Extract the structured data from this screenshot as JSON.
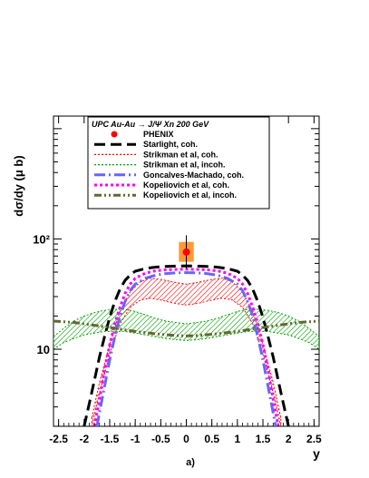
{
  "chart_data": {
    "type": "line",
    "panel_label": "a)",
    "xlabel": "y",
    "ylabel": "dσ/dy (μ b)",
    "xlim": [
      -2.6,
      2.6
    ],
    "ylim": [
      2.0,
      1300
    ],
    "yscale": "log",
    "x_ticks": [
      -2.5,
      -2,
      -1.5,
      -1,
      -0.5,
      0,
      0.5,
      1,
      1.5,
      2,
      2.5
    ],
    "x_tick_labels": [
      "-2.5",
      "-2",
      "-1.5",
      "-1",
      "-0.5",
      "0",
      "0.5",
      "1",
      "1.5",
      "2",
      "2.5"
    ],
    "y_tick_labels": [
      {
        "value": 10,
        "label": "10"
      },
      {
        "value": 100,
        "label": "10²"
      }
    ],
    "legend": {
      "header": "UPC Au-Au → J/Ψ Xn   200 GeV",
      "position": "top",
      "entries": [
        {
          "label": "PHENIX",
          "style": "marker",
          "color": "#ff0000"
        },
        {
          "label": "Starlight, coh.",
          "style": "dashed-long",
          "color": "#000000"
        },
        {
          "label": "Strikman et al, coh.",
          "style": "dotted",
          "color": "#ff0000"
        },
        {
          "label": "Strikman et al, incoh.",
          "style": "dotted",
          "color": "#00a000"
        },
        {
          "label": "Goncalves-Machado, coh.",
          "style": "dash-dot",
          "color": "#6666ff"
        },
        {
          "label": "Kopeliovich et al, coh.",
          "style": "dotted-thick",
          "color": "#ff00ff"
        },
        {
          "label": "Kopeliovich et al, incoh.",
          "style": "dash-dot-thick",
          "color": "#666633"
        }
      ]
    },
    "data_point": {
      "name": "PHENIX",
      "x": 0.0,
      "y": 76,
      "yerr_low": 54,
      "yerr_high": 108,
      "xerr": 0.35,
      "sys_low": 62,
      "sys_high": 94,
      "color": "#ff0000",
      "sys_color": "#ff9933"
    },
    "series": [
      {
        "name": "Starlight, coh.",
        "color": "#000000",
        "style": "dashed-long",
        "x": [
          -2.0,
          -1.9,
          -1.8,
          -1.7,
          -1.6,
          -1.5,
          -1.4,
          -1.3,
          -1.2,
          -1.1,
          -1.0,
          -0.8,
          -0.6,
          -0.4,
          -0.2,
          0.0,
          0.2,
          0.4,
          0.6,
          0.8,
          1.0,
          1.1,
          1.2,
          1.3,
          1.4,
          1.5,
          1.6,
          1.7,
          1.8,
          1.9,
          2.0
        ],
        "y": [
          2.0,
          3.2,
          5.2,
          8.5,
          13,
          19.5,
          27,
          35,
          42,
          47,
          51,
          54,
          55.5,
          56.3,
          56.8,
          57,
          56.8,
          56.3,
          55.5,
          54,
          51,
          47,
          42,
          35,
          27,
          19.5,
          13,
          8.5,
          5.2,
          3.2,
          2.0
        ]
      },
      {
        "name": "Strikman et al, coh.",
        "color": "#ff0000",
        "style": "band-hatched",
        "x": [
          -1.85,
          -1.7,
          -1.5,
          -1.3,
          -1.1,
          -0.9,
          -0.7,
          -0.5,
          -0.3,
          -0.1,
          0.0,
          0.1,
          0.3,
          0.5,
          0.7,
          0.9,
          1.1,
          1.3,
          1.5,
          1.7,
          1.85
        ],
        "y_low": [
          2.0,
          4.0,
          9.0,
          17,
          24,
          28,
          29,
          28,
          26.5,
          25.5,
          25.2,
          25.5,
          26.5,
          28,
          29,
          28,
          24,
          17,
          9.0,
          4.0,
          2.0
        ],
        "y_high": [
          2.4,
          5.0,
          11,
          22,
          33,
          41,
          44,
          43,
          41,
          39.5,
          39,
          39.5,
          41,
          43,
          44,
          41,
          33,
          22,
          11,
          5.0,
          2.4
        ]
      },
      {
        "name": "Strikman et al, incoh.",
        "color": "#00a000",
        "style": "band-hatched",
        "x": [
          -2.6,
          -2.4,
          -2.2,
          -2.0,
          -1.8,
          -1.6,
          -1.4,
          -1.2,
          -1.0,
          -0.8,
          -0.6,
          -0.4,
          -0.2,
          0.0,
          0.2,
          0.4,
          0.6,
          0.8,
          1.0,
          1.2,
          1.4,
          1.6,
          1.8,
          2.0,
          2.2,
          2.4,
          2.6
        ],
        "y_low": [
          10,
          11.5,
          12.5,
          13.5,
          14,
          14.5,
          14.5,
          14.5,
          14,
          13.5,
          13,
          12.5,
          12.2,
          12,
          12.2,
          12.5,
          13,
          13.5,
          14,
          14.5,
          14.5,
          14.5,
          14,
          13.5,
          12.5,
          11.5,
          10
        ],
        "y_high": [
          13,
          15.5,
          18,
          20,
          21.5,
          22.5,
          23,
          23,
          22,
          20.5,
          19,
          18,
          17.5,
          17,
          17.5,
          18,
          19,
          20.5,
          22,
          23,
          23,
          22.5,
          21.5,
          20,
          18,
          15.5,
          13
        ]
      },
      {
        "name": "Goncalves-Machado, coh.",
        "color": "#6666ff",
        "style": "dash-dot",
        "x": [
          -1.75,
          -1.65,
          -1.5,
          -1.4,
          -1.3,
          -1.2,
          -1.1,
          -1.0,
          -0.8,
          -0.6,
          -0.4,
          -0.2,
          0.0,
          0.2,
          0.4,
          0.6,
          0.8,
          1.0,
          1.1,
          1.2,
          1.3,
          1.4,
          1.5,
          1.65,
          1.75
        ],
        "y": [
          2.0,
          3.5,
          8.0,
          13,
          20,
          27,
          34,
          39,
          44,
          47,
          48.5,
          49.3,
          49.5,
          49.3,
          48.5,
          47,
          44,
          39,
          34,
          27,
          20,
          13,
          8.0,
          3.5,
          2.0
        ]
      },
      {
        "name": "Kopeliovich et al, coh.",
        "color": "#ff00ff",
        "style": "dotted-thick",
        "x": [
          -1.8,
          -1.7,
          -1.6,
          -1.5,
          -1.4,
          -1.3,
          -1.2,
          -1.1,
          -1.0,
          -0.8,
          -0.6,
          -0.4,
          -0.2,
          0.0,
          0.2,
          0.4,
          0.6,
          0.8,
          1.0,
          1.1,
          1.2,
          1.3,
          1.4,
          1.5,
          1.6,
          1.7,
          1.8
        ],
        "y": [
          2.0,
          3.5,
          6.5,
          11,
          17,
          24,
          32,
          39,
          44,
          49,
          51.5,
          52.5,
          53,
          53.2,
          53,
          52.5,
          51.5,
          49,
          44,
          39,
          32,
          24,
          17,
          11,
          6.5,
          3.5,
          2.0
        ]
      },
      {
        "name": "Kopeliovich et al, incoh.",
        "color": "#666633",
        "style": "dash-dot-thick",
        "x": [
          -2.6,
          -2.2,
          -1.8,
          -1.4,
          -1.0,
          -0.6,
          -0.2,
          0.0,
          0.2,
          0.6,
          1.0,
          1.4,
          1.8,
          2.2,
          2.6
        ],
        "y": [
          18,
          17.5,
          16.5,
          15.5,
          14.5,
          13.8,
          13.3,
          13.2,
          13.3,
          13.8,
          14.5,
          15.5,
          16.5,
          17.5,
          18
        ]
      }
    ]
  }
}
